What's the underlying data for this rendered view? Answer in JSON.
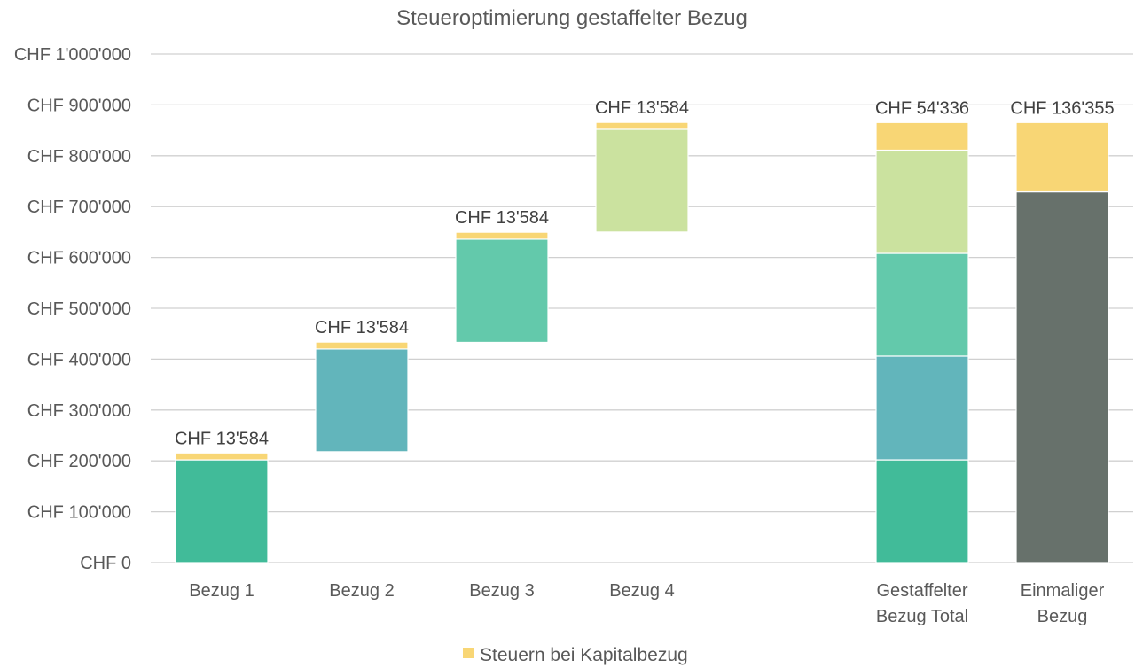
{
  "chart_data": {
    "type": "bar",
    "subtype": "stacked-waterfall",
    "title": "Steueroptimierung gestaffelter Bezug",
    "xlabel": "",
    "ylabel": "",
    "ylim": [
      0,
      1000000
    ],
    "ytick_step": 100000,
    "ytick_labels": [
      "CHF 0",
      "CHF 100'000",
      "CHF 200'000",
      "CHF 300'000",
      "CHF 400'000",
      "CHF 500'000",
      "CHF 600'000",
      "CHF 700'000",
      "CHF 800'000",
      "CHF 900'000",
      "CHF 1'000'000"
    ],
    "grid": true,
    "legend_position": "bottom-center",
    "categories": [
      {
        "label_lines": [
          "Bezug 1"
        ],
        "slot": 0
      },
      {
        "label_lines": [
          "Bezug 2"
        ],
        "slot": 1
      },
      {
        "label_lines": [
          "Bezug 3"
        ],
        "slot": 2
      },
      {
        "label_lines": [
          "Bezug 4"
        ],
        "slot": 3
      },
      {
        "label_lines": [
          "Gestaffelter",
          "Bezug Total"
        ],
        "slot": 5
      },
      {
        "label_lines": [
          "Einmaliger",
          "Bezug"
        ],
        "slot": 6
      }
    ],
    "bars": [
      {
        "category": 0,
        "segments": [
          {
            "from": 0,
            "to": 202000,
            "color": "#41bb99",
            "kind": "net"
          },
          {
            "from": 202000,
            "to": 215584,
            "color": "#f8d675",
            "kind": "tax"
          }
        ]
      },
      {
        "category": 1,
        "segments": [
          {
            "from": 218000,
            "to": 420000,
            "color": "#62b5bb",
            "kind": "net"
          },
          {
            "from": 420000,
            "to": 433584,
            "color": "#f8d675",
            "kind": "tax"
          }
        ]
      },
      {
        "category": 2,
        "segments": [
          {
            "from": 433000,
            "to": 636000,
            "color": "#63c9ab",
            "kind": "net"
          },
          {
            "from": 636000,
            "to": 649584,
            "color": "#f8d675",
            "kind": "tax"
          }
        ]
      },
      {
        "category": 3,
        "segments": [
          {
            "from": 650000,
            "to": 852000,
            "color": "#cbe29f",
            "kind": "net"
          },
          {
            "from": 852000,
            "to": 865584,
            "color": "#f8d675",
            "kind": "tax"
          }
        ]
      },
      {
        "category": 4,
        "segments": [
          {
            "from": 0,
            "to": 202000,
            "color": "#41bb99",
            "kind": "net"
          },
          {
            "from": 202000,
            "to": 406000,
            "color": "#62b5bb",
            "kind": "net"
          },
          {
            "from": 406000,
            "to": 608000,
            "color": "#63c9ab",
            "kind": "net"
          },
          {
            "from": 608000,
            "to": 811000,
            "color": "#cbe29f",
            "kind": "net"
          },
          {
            "from": 811000,
            "to": 865336,
            "color": "#f8d675",
            "kind": "tax"
          }
        ]
      },
      {
        "category": 5,
        "segments": [
          {
            "from": 0,
            "to": 729000,
            "color": "#67716b",
            "kind": "net"
          },
          {
            "from": 729000,
            "to": 865355,
            "color": "#f8d675",
            "kind": "tax"
          }
        ]
      }
    ],
    "data_labels": [
      {
        "category": 0,
        "text": "CHF 13'584",
        "value": 13584
      },
      {
        "category": 1,
        "text": "CHF 13'584",
        "value": 13584
      },
      {
        "category": 2,
        "text": "CHF 13'584",
        "value": 13584
      },
      {
        "category": 3,
        "text": "CHF 13'584",
        "value": 13584
      },
      {
        "category": 4,
        "text": "CHF 54'336",
        "value": 54336
      },
      {
        "category": 5,
        "text": "CHF 136'355",
        "value": 136355
      }
    ],
    "legend": [
      {
        "name": "Steuern bei Kapitalbezug",
        "color": "#f8d675"
      }
    ]
  }
}
